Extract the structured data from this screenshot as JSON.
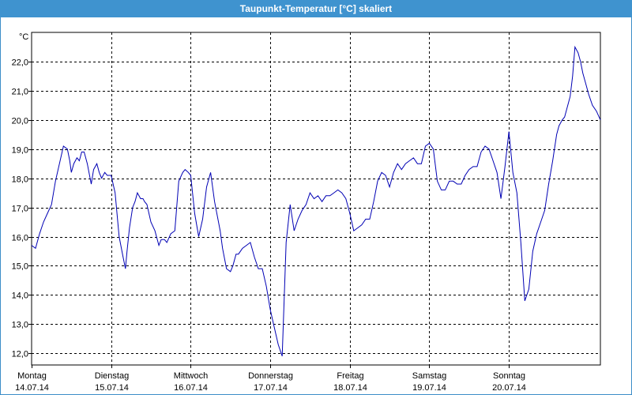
{
  "window": {
    "title": "Taupunkt-Temperatur [°C] skaliert"
  },
  "chart_data": {
    "type": "line",
    "title": "Taupunkt-Temperatur [°C] skaliert",
    "ylabel": "°C",
    "xlabel": "",
    "ylim": [
      11.6,
      23.0
    ],
    "xlim": [
      0,
      7.15
    ],
    "y_ticks": [
      "12,0",
      "13,0",
      "14,0",
      "15,0",
      "16,0",
      "17,0",
      "18,0",
      "19,0",
      "20,0",
      "21,0",
      "22,0"
    ],
    "y_tick_values": [
      12,
      13,
      14,
      15,
      16,
      17,
      18,
      19,
      20,
      21,
      22
    ],
    "x_ticks": [
      {
        "day": "Montag",
        "date": "14.07.14"
      },
      {
        "day": "Dienstag",
        "date": "15.07.14"
      },
      {
        "day": "Mittwoch",
        "date": "16.07.14"
      },
      {
        "day": "Donnerstag",
        "date": "17.07.14"
      },
      {
        "day": "Freitag",
        "date": "18.07.14"
      },
      {
        "day": "Samstag",
        "date": "19.07.14"
      },
      {
        "day": "Sonntag",
        "date": "20.07.14"
      }
    ],
    "grid": true,
    "line_color": "#0000b4",
    "series": [
      {
        "x": [
          0.0,
          0.05,
          0.1,
          0.15,
          0.2,
          0.25,
          0.3,
          0.4,
          0.45,
          0.48,
          0.5,
          0.53,
          0.57,
          0.6,
          0.63,
          0.66,
          0.7,
          0.75,
          0.78,
          0.82,
          0.85,
          0.88,
          0.92,
          0.95,
          1.0,
          1.05,
          1.1,
          1.15,
          1.18,
          1.2,
          1.23,
          1.27,
          1.3,
          1.33,
          1.37,
          1.4,
          1.42,
          1.45,
          1.5,
          1.55,
          1.6,
          1.63,
          1.67,
          1.7,
          1.75,
          1.8,
          1.85,
          1.9,
          1.93,
          1.97,
          2.0,
          2.05,
          2.1,
          2.15,
          2.2,
          2.25,
          2.3,
          2.37,
          2.4,
          2.45,
          2.5,
          2.53,
          2.57,
          2.6,
          2.65,
          2.7,
          2.75,
          2.8,
          2.85,
          2.9,
          2.95,
          3.0,
          3.05,
          3.1,
          3.15,
          3.2,
          3.25,
          3.3,
          3.35,
          3.4,
          3.45,
          3.5,
          3.55,
          3.6,
          3.65,
          3.7,
          3.75,
          3.8,
          3.85,
          3.9,
          3.95,
          4.0,
          4.05,
          4.1,
          4.15,
          4.2,
          4.25,
          4.3,
          4.35,
          4.4,
          4.45,
          4.5,
          4.55,
          4.6,
          4.65,
          4.7,
          4.75,
          4.8,
          4.85,
          4.9,
          4.95,
          5.0,
          5.05,
          5.1,
          5.15,
          5.2,
          5.25,
          5.3,
          5.35,
          5.4,
          5.45,
          5.5,
          5.55,
          5.6,
          5.65,
          5.7,
          5.75,
          5.8,
          5.85,
          5.9,
          5.95,
          6.0,
          6.05,
          6.1,
          6.15,
          6.2,
          6.25,
          6.3,
          6.35,
          6.4,
          6.45,
          6.5,
          6.55,
          6.6,
          6.63,
          6.67,
          6.7,
          6.73,
          6.77,
          6.8,
          6.83,
          6.87,
          6.9,
          6.93,
          6.97,
          7.0,
          7.05,
          7.1,
          7.15
        ],
        "y": [
          15.7,
          15.6,
          16.1,
          16.5,
          16.8,
          17.1,
          17.9,
          19.1,
          19.0,
          18.6,
          18.2,
          18.5,
          18.7,
          18.6,
          18.9,
          18.9,
          18.5,
          17.8,
          18.3,
          18.5,
          18.2,
          18.0,
          18.2,
          18.1,
          18.1,
          17.5,
          16.0,
          15.3,
          14.9,
          15.5,
          16.3,
          17.0,
          17.2,
          17.5,
          17.3,
          17.3,
          17.2,
          17.1,
          16.5,
          16.2,
          15.7,
          15.9,
          15.9,
          15.8,
          16.1,
          16.2,
          17.9,
          18.2,
          18.3,
          18.2,
          18.1,
          16.8,
          16.0,
          16.6,
          17.7,
          18.2,
          17.2,
          16.2,
          15.6,
          14.9,
          14.8,
          15.0,
          15.4,
          15.4,
          15.6,
          15.7,
          15.8,
          15.3,
          14.9,
          14.9,
          14.3,
          13.5,
          12.9,
          12.3,
          11.9,
          15.8,
          17.1,
          16.2,
          16.6,
          16.9,
          17.1,
          17.5,
          17.3,
          17.4,
          17.2,
          17.4,
          17.4,
          17.5,
          17.6,
          17.5,
          17.3,
          16.8,
          16.2,
          16.3,
          16.4,
          16.6,
          16.6,
          17.2,
          17.9,
          18.2,
          18.1,
          17.7,
          18.2,
          18.5,
          18.3,
          18.5,
          18.6,
          18.7,
          18.5,
          18.5,
          19.1,
          19.2,
          19.0,
          17.9,
          17.6,
          17.6,
          17.9,
          17.9,
          17.8,
          17.8,
          18.1,
          18.3,
          18.4,
          18.4,
          18.9,
          19.1,
          19.0,
          18.6,
          18.2,
          17.3,
          18.4,
          19.6,
          18.2,
          17.5,
          15.8,
          13.8,
          14.2,
          15.5,
          16.1,
          16.5,
          16.9,
          17.8,
          18.6,
          19.5,
          19.8,
          20.0,
          20.1,
          20.4,
          20.8,
          21.5,
          22.5,
          22.3,
          22.0,
          21.6,
          21.2,
          20.9,
          20.5,
          20.3,
          20.0
        ]
      }
    ]
  }
}
